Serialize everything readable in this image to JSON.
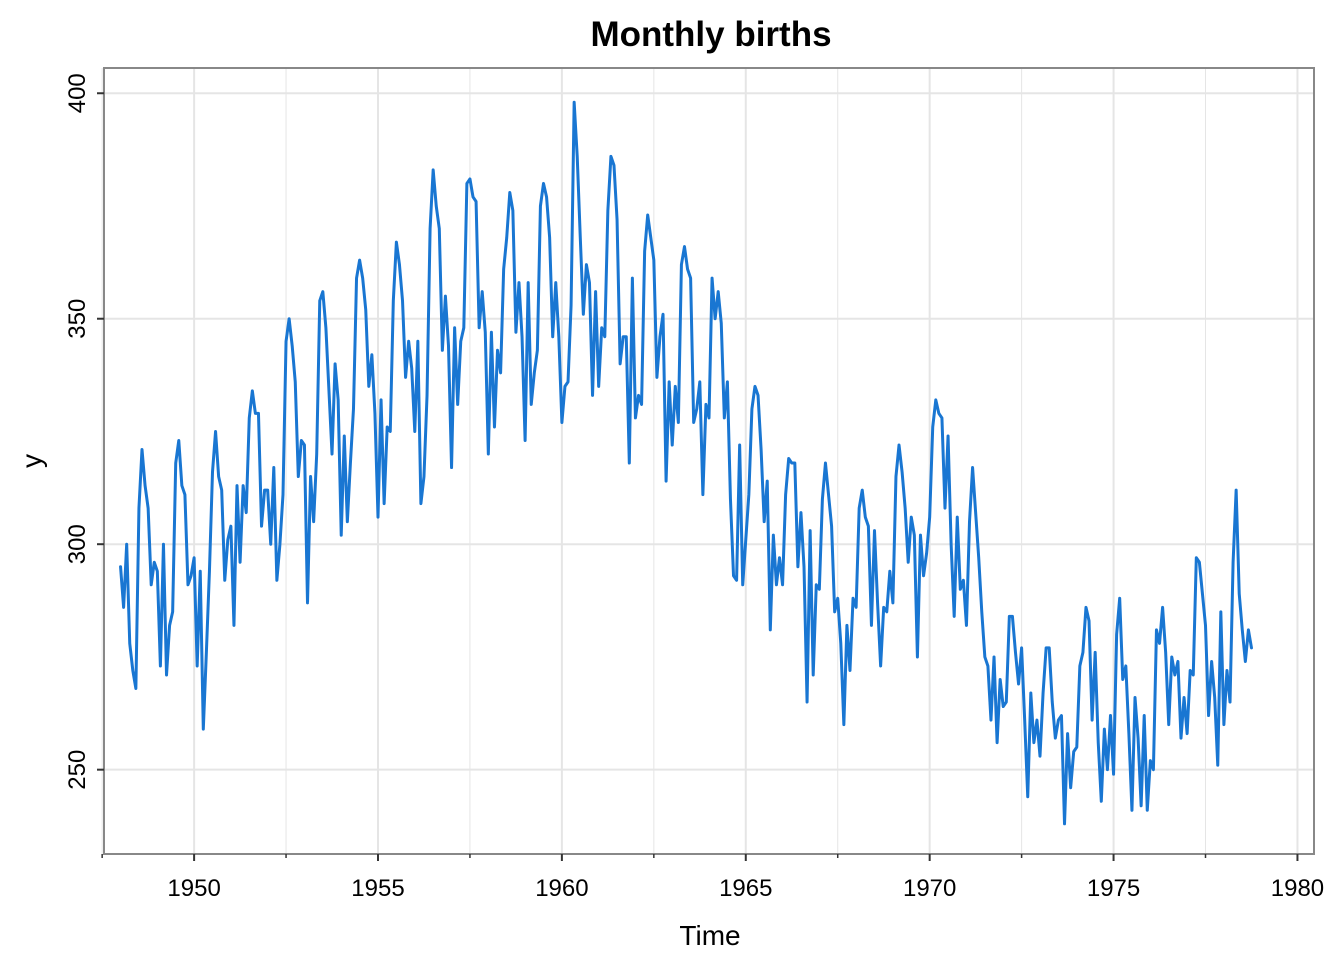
{
  "chart_data": {
    "type": "line",
    "title": "Monthly births",
    "xlabel": "Time",
    "ylabel": "y",
    "xlim": [
      1947.55,
      1980.45
    ],
    "ylim": [
      231.3,
      405.6
    ],
    "x_ticks": [
      1950,
      1955,
      1960,
      1965,
      1970,
      1975,
      1980
    ],
    "x_minor_ticks": [
      1947.5,
      1952.5,
      1957.5,
      1962.5,
      1967.5,
      1972.5,
      1977.5
    ],
    "y_ticks": [
      250,
      300,
      350,
      400
    ],
    "grid": true,
    "colors": {
      "line": "#1976d2",
      "grid": "#e5e5e5",
      "frame": "#888888"
    },
    "series": [
      {
        "start": [
          1948,
          1
        ],
        "frequency": 12,
        "values": [
          295,
          286,
          300,
          278,
          272,
          268,
          308,
          321,
          313,
          308,
          291,
          296,
          294,
          273,
          300,
          271,
          282,
          285,
          318,
          323,
          313,
          311,
          291,
          293,
          297,
          273,
          294,
          259,
          276,
          294,
          316,
          325,
          315,
          312,
          292,
          301,
          304,
          282,
          313,
          296,
          313,
          307,
          328,
          334,
          329,
          329,
          304,
          312,
          312,
          300,
          317,
          292,
          300,
          311,
          345,
          350,
          344,
          336,
          315,
          323,
          322,
          287,
          315,
          305,
          320,
          354,
          356,
          348,
          334,
          320,
          340,
          332,
          302,
          324,
          305,
          318,
          330,
          359,
          363,
          359,
          352,
          335,
          342,
          329,
          306,
          332,
          309,
          326,
          325,
          354,
          367,
          362,
          354,
          337,
          345,
          339,
          325,
          345,
          309,
          315,
          333,
          370,
          383,
          375,
          370,
          343,
          355,
          344,
          317,
          348,
          331,
          345,
          348,
          380,
          381,
          377,
          376,
          348,
          356,
          347,
          320,
          347,
          326,
          343,
          338,
          361,
          368,
          378,
          374,
          347,
          358,
          346,
          323,
          358,
          331,
          338,
          343,
          375,
          380,
          377,
          368,
          346,
          358,
          346,
          327,
          335,
          336,
          353,
          398,
          386,
          368,
          351,
          362,
          358,
          333,
          356,
          335,
          348,
          346,
          374,
          386,
          384,
          372,
          340,
          346,
          346,
          318,
          359,
          328,
          333,
          331,
          365,
          373,
          368,
          363,
          337,
          346,
          351,
          314,
          336,
          322,
          335,
          327,
          362,
          366,
          361,
          359,
          327,
          330,
          336,
          311,
          331,
          328,
          359,
          350,
          356,
          349,
          328,
          336,
          310,
          293,
          292,
          322,
          291,
          301,
          311,
          330,
          335,
          333,
          321,
          305,
          314,
          281,
          302,
          291,
          297,
          291,
          311,
          319,
          318,
          318,
          295,
          307,
          295,
          265,
          303,
          271,
          291,
          290,
          310,
          318,
          311,
          304,
          285,
          288,
          278,
          260,
          282,
          272,
          288,
          286,
          308,
          312,
          306,
          304,
          282,
          303,
          287,
          273,
          286,
          285,
          294,
          287,
          315,
          322,
          316,
          308,
          296,
          306,
          302,
          275,
          302,
          293,
          298,
          306,
          326,
          332,
          329,
          328,
          308,
          324,
          300,
          284,
          306,
          290,
          292,
          282,
          305,
          317,
          307,
          297,
          285,
          275,
          273,
          261,
          275,
          256,
          270,
          264,
          265,
          284,
          284,
          276,
          269,
          277,
          261,
          244,
          267,
          256,
          261,
          253,
          267,
          277,
          277,
          265,
          257,
          261,
          262,
          238,
          258,
          246,
          254,
          255,
          273,
          276,
          286,
          283,
          261,
          276,
          256,
          243,
          259,
          250,
          262,
          249,
          280,
          288,
          270,
          273,
          258,
          241,
          266,
          257,
          242,
          262,
          241,
          252,
          250,
          281,
          278,
          286,
          276,
          260,
          275,
          271,
          274,
          257,
          266,
          258,
          272,
          271,
          297,
          296,
          289,
          282,
          262,
          274,
          266,
          251,
          285,
          260,
          272,
          265,
          296,
          312,
          289,
          281,
          274,
          281,
          277
        ]
      }
    ]
  }
}
